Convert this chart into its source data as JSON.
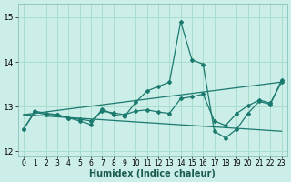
{
  "xlabel": "Humidex (Indice chaleur)",
  "bg_color": "#cceee8",
  "grid_color": "#aaddcc",
  "line_color": "#1a7a6e",
  "xlim": [
    -0.5,
    23.5
  ],
  "ylim": [
    11.9,
    15.3
  ],
  "yticks": [
    12,
    13,
    14,
    15
  ],
  "xticks": [
    0,
    1,
    2,
    3,
    4,
    5,
    6,
    7,
    8,
    9,
    10,
    11,
    12,
    13,
    14,
    15,
    16,
    17,
    18,
    19,
    20,
    21,
    22,
    23
  ],
  "series1_x": [
    0,
    1,
    2,
    3,
    4,
    5,
    6,
    7,
    8,
    9,
    10,
    11,
    12,
    13,
    14,
    15,
    16,
    17,
    18,
    19,
    20,
    21,
    22,
    23
  ],
  "series1_y": [
    12.5,
    12.9,
    12.85,
    12.82,
    12.75,
    12.68,
    12.6,
    12.95,
    12.82,
    12.78,
    13.1,
    13.35,
    13.45,
    13.55,
    14.9,
    14.05,
    13.95,
    12.45,
    12.3,
    12.5,
    12.85,
    13.12,
    13.05,
    13.6
  ],
  "series2_x": [
    0,
    1,
    2,
    3,
    4,
    5,
    6,
    7,
    8,
    9,
    10,
    11,
    12,
    13,
    14,
    15,
    16,
    17,
    18,
    19,
    20,
    21,
    22,
    23
  ],
  "series2_y": [
    12.5,
    12.88,
    12.82,
    12.82,
    12.75,
    12.72,
    12.68,
    12.9,
    12.86,
    12.82,
    12.9,
    12.93,
    12.88,
    12.85,
    13.18,
    13.22,
    13.28,
    12.68,
    12.58,
    12.85,
    13.02,
    13.15,
    13.08,
    13.55
  ],
  "trend1_x": [
    0,
    23
  ],
  "trend1_y": [
    12.82,
    13.55
  ],
  "trend2_x": [
    0,
    23
  ],
  "trend2_y": [
    12.82,
    12.45
  ]
}
